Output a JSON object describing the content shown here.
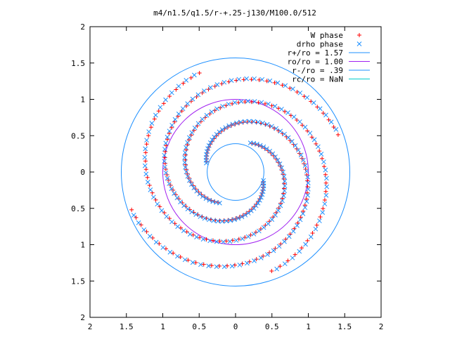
{
  "chart_data": {
    "type": "scatter",
    "title": "m4/n1.5/q1.5/r-+.25-j130/M100.0/512",
    "xlabel": "",
    "ylabel": "",
    "xlim": [
      -2,
      2
    ],
    "ylim": [
      -2,
      2
    ],
    "x_ticks": [
      -2,
      -1.5,
      -1,
      -0.5,
      0,
      0.5,
      1,
      1.5,
      2
    ],
    "y_ticks": [
      -2,
      -1.5,
      -1,
      -0.5,
      0,
      0.5,
      1,
      1.5,
      2
    ],
    "x_tick_labels": [
      "2",
      "1.5",
      "1",
      "0.5",
      "0",
      "0.5",
      "1",
      "1.5",
      "2"
    ],
    "y_tick_labels": [
      "2",
      "1.5",
      "1",
      "0.5",
      "0",
      "0.5",
      "1",
      "1.5",
      "2"
    ],
    "grid": false,
    "legend_position": "top-right",
    "series": [
      {
        "name": "W phase",
        "marker": "plus",
        "color": "#ff0000",
        "arms": [
          {
            "r_start": 1.52,
            "r_end": 0.42,
            "t_start": 200,
            "t_end": 520,
            "n": 70
          },
          {
            "r_start": 1.5,
            "r_end": 0.4,
            "t_start": 20,
            "t_end": 340,
            "n": 70
          },
          {
            "r_start": 1.45,
            "r_end": 0.45,
            "t_start": 110,
            "t_end": 420,
            "n": 60
          },
          {
            "r_start": 1.45,
            "r_end": 0.48,
            "t_start": 290,
            "t_end": 600,
            "n": 60
          }
        ]
      },
      {
        "name": "drho phase",
        "marker": "cross",
        "color": "#1e90ff",
        "arms": [
          {
            "r_start": 1.52,
            "r_end": 0.42,
            "t_start": 203,
            "t_end": 523,
            "n": 70
          },
          {
            "r_start": 1.5,
            "r_end": 0.4,
            "t_start": 23,
            "t_end": 343,
            "n": 70
          },
          {
            "r_start": 1.45,
            "r_end": 0.45,
            "t_start": 113,
            "t_end": 423,
            "n": 60
          },
          {
            "r_start": 1.45,
            "r_end": 0.48,
            "t_start": 293,
            "t_end": 603,
            "n": 60
          }
        ]
      }
    ],
    "circles": [
      {
        "name": "r+/ro = 1.57",
        "r": 1.57,
        "color": "#1e90ff"
      },
      {
        "name": "ro/ro = 1.00",
        "r": 1.0,
        "color": "#a020f0"
      },
      {
        "name": "r-/ro = .39",
        "r": 0.39,
        "color": "#1e90ff"
      },
      {
        "name": "rc/ro = NaN",
        "r": null,
        "color": "#00cccc"
      }
    ]
  }
}
